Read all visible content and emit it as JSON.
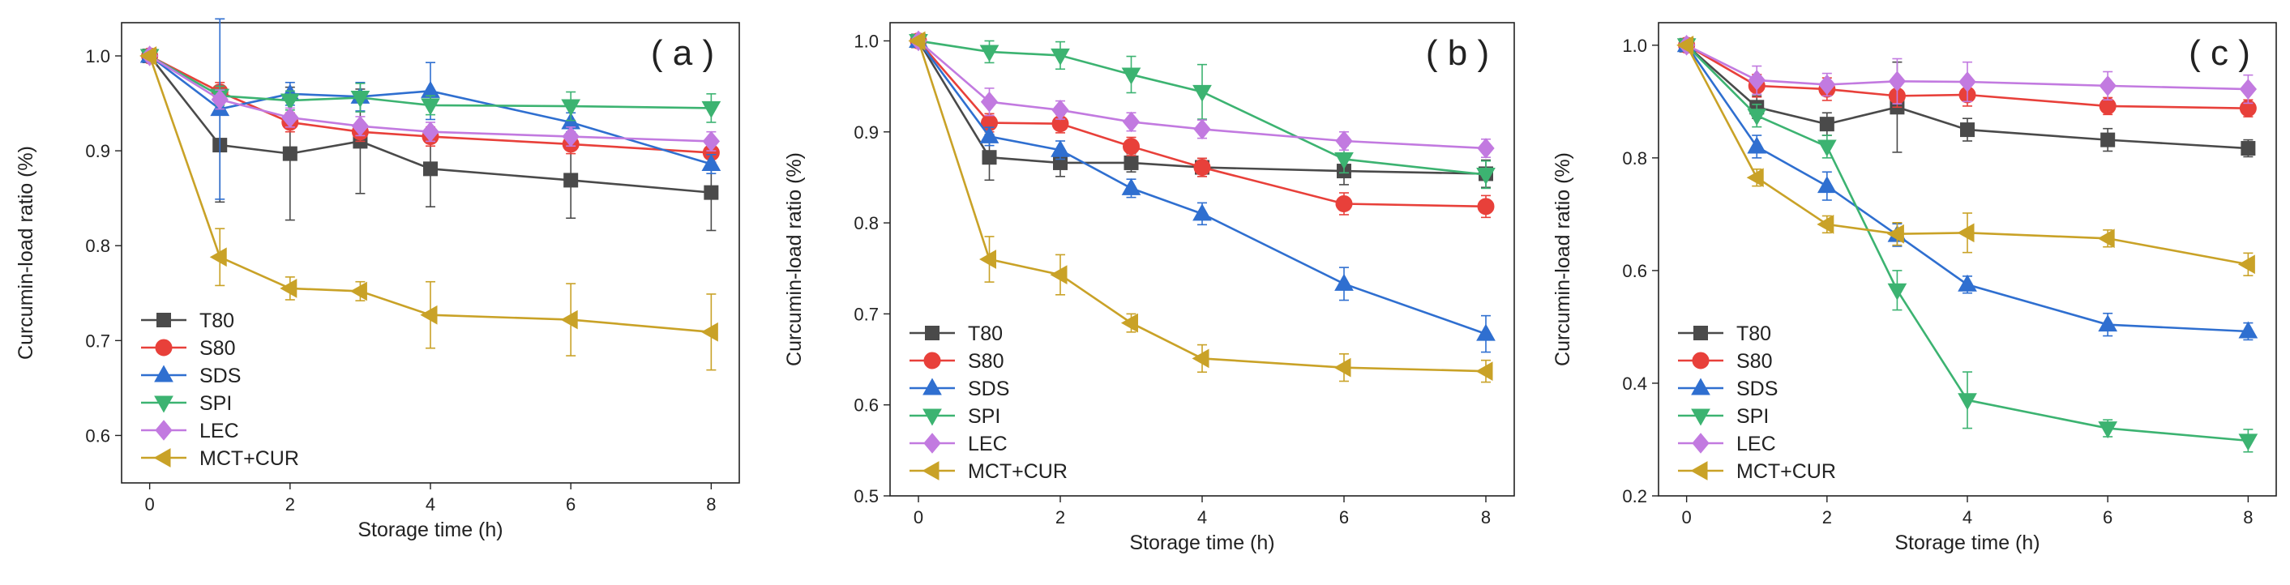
{
  "colors": {
    "T80": "#4a4a4a",
    "S80": "#e8403a",
    "SDS": "#2f6fd0",
    "SPI": "#3cb371",
    "LEC": "#c27ae0",
    "MCT+CUR": "#c9a227"
  },
  "chart_data": [
    {
      "type": "line",
      "panel_label": "( a )",
      "xlabel": "Storage time (h)",
      "ylabel": "Curcumin-load ratio (%)",
      "xlim": [
        -0.4,
        8.4
      ],
      "ylim": [
        0.55,
        1.035
      ],
      "xticks": [
        0,
        2,
        4,
        6,
        8
      ],
      "yticks": [
        0.6,
        0.7,
        0.8,
        0.9,
        1.0
      ],
      "x": [
        0,
        1,
        2,
        3,
        4,
        6,
        8
      ],
      "legend_position": "bottom-left",
      "series": [
        {
          "name": "T80",
          "marker": "square",
          "values": [
            1.0,
            0.906,
            0.897,
            0.91,
            0.881,
            0.869,
            0.856
          ],
          "errors": [
            0,
            0.06,
            0.07,
            0.055,
            0.04,
            0.04,
            0.04
          ]
        },
        {
          "name": "S80",
          "marker": "circle",
          "values": [
            1.0,
            0.962,
            0.93,
            0.92,
            0.915,
            0.907,
            0.898
          ],
          "errors": [
            0,
            0.01,
            0.01,
            0.01,
            0.01,
            0.01,
            0.01
          ]
        },
        {
          "name": "SDS",
          "marker": "triangle-up",
          "values": [
            1.0,
            0.944,
            0.96,
            0.957,
            0.963,
            0.93,
            0.886
          ],
          "errors": [
            0,
            0.095,
            0.012,
            0.015,
            0.03,
            0.01,
            0.01
          ]
        },
        {
          "name": "SPI",
          "marker": "triangle-down",
          "values": [
            1.0,
            0.958,
            0.953,
            0.956,
            0.948,
            0.947,
            0.945
          ],
          "errors": [
            0,
            0.01,
            0.01,
            0.015,
            0.01,
            0.015,
            0.015
          ]
        },
        {
          "name": "LEC",
          "marker": "diamond",
          "values": [
            1.0,
            0.954,
            0.935,
            0.926,
            0.92,
            0.915,
            0.91
          ],
          "errors": [
            0,
            0.01,
            0.01,
            0.01,
            0.01,
            0.01,
            0.01
          ]
        },
        {
          "name": "MCT+CUR",
          "marker": "triangle-left",
          "values": [
            1.0,
            0.788,
            0.755,
            0.752,
            0.727,
            0.722,
            0.709
          ],
          "errors": [
            0,
            0.03,
            0.012,
            0.01,
            0.035,
            0.038,
            0.04
          ]
        }
      ]
    },
    {
      "type": "line",
      "panel_label": "( b )",
      "xlabel": "Storage time (h)",
      "ylabel": "Curcumin-load ratio (%)",
      "xlim": [
        -0.4,
        8.4
      ],
      "ylim": [
        0.5,
        1.02
      ],
      "xticks": [
        0,
        2,
        4,
        6,
        8
      ],
      "yticks": [
        0.5,
        0.6,
        0.7,
        0.8,
        0.9,
        1.0
      ],
      "x": [
        0,
        1,
        2,
        3,
        4,
        6,
        8
      ],
      "legend_position": "bottom-left",
      "series": [
        {
          "name": "T80",
          "marker": "square",
          "values": [
            1.0,
            0.872,
            0.866,
            0.866,
            0.861,
            0.857,
            0.854
          ],
          "errors": [
            0,
            0.025,
            0.015,
            0.01,
            0.01,
            0.015,
            0.015
          ]
        },
        {
          "name": "S80",
          "marker": "circle",
          "values": [
            1.0,
            0.91,
            0.909,
            0.884,
            0.861,
            0.821,
            0.818
          ],
          "errors": [
            0,
            0.01,
            0.01,
            0.01,
            0.01,
            0.012,
            0.012
          ]
        },
        {
          "name": "SDS",
          "marker": "triangle-up",
          "values": [
            1.0,
            0.895,
            0.88,
            0.838,
            0.81,
            0.733,
            0.678
          ],
          "errors": [
            0,
            0.01,
            0.01,
            0.01,
            0.012,
            0.018,
            0.02
          ]
        },
        {
          "name": "SPI",
          "marker": "triangle-down",
          "values": [
            1.0,
            0.988,
            0.984,
            0.963,
            0.944,
            0.87,
            0.853
          ],
          "errors": [
            0,
            0.012,
            0.015,
            0.02,
            0.03,
            0.015,
            0.015
          ]
        },
        {
          "name": "LEC",
          "marker": "diamond",
          "values": [
            1.0,
            0.933,
            0.924,
            0.911,
            0.903,
            0.89,
            0.882
          ],
          "errors": [
            0,
            0.015,
            0.01,
            0.01,
            0.01,
            0.01,
            0.01
          ]
        },
        {
          "name": "MCT+CUR",
          "marker": "triangle-left",
          "values": [
            1.0,
            0.76,
            0.743,
            0.69,
            0.651,
            0.641,
            0.637
          ],
          "errors": [
            0,
            0.025,
            0.022,
            0.01,
            0.015,
            0.015,
            0.012
          ]
        }
      ]
    },
    {
      "type": "line",
      "panel_label": "( c )",
      "xlabel": "Storage time (h)",
      "ylabel": "Curcumin-load ratio (%)",
      "xlim": [
        -0.4,
        8.4
      ],
      "ylim": [
        0.2,
        1.04
      ],
      "xticks": [
        0,
        2,
        4,
        6,
        8
      ],
      "yticks": [
        0.2,
        0.4,
        0.6,
        0.8,
        1.0
      ],
      "x": [
        0,
        1,
        2,
        3,
        4,
        6,
        8
      ],
      "legend_position": "bottom-left",
      "series": [
        {
          "name": "T80",
          "marker": "square",
          "values": [
            1.0,
            0.89,
            0.86,
            0.89,
            0.85,
            0.832,
            0.817
          ],
          "errors": [
            0,
            0.02,
            0.02,
            0.08,
            0.02,
            0.02,
            0.015
          ]
        },
        {
          "name": "S80",
          "marker": "circle",
          "values": [
            1.0,
            0.928,
            0.922,
            0.91,
            0.912,
            0.892,
            0.888
          ],
          "errors": [
            0,
            0.02,
            0.02,
            0.02,
            0.02,
            0.015,
            0.015
          ]
        },
        {
          "name": "SDS",
          "marker": "triangle-up",
          "values": [
            1.0,
            0.82,
            0.75,
            0.663,
            0.575,
            0.504,
            0.492
          ],
          "errors": [
            0,
            0.02,
            0.025,
            0.02,
            0.015,
            0.02,
            0.015
          ]
        },
        {
          "name": "SPI",
          "marker": "triangle-down",
          "values": [
            1.0,
            0.875,
            0.82,
            0.565,
            0.37,
            0.32,
            0.298
          ],
          "errors": [
            0,
            0.02,
            0.02,
            0.035,
            0.05,
            0.015,
            0.02
          ]
        },
        {
          "name": "LEC",
          "marker": "diamond",
          "values": [
            1.0,
            0.938,
            0.93,
            0.936,
            0.935,
            0.928,
            0.922
          ],
          "errors": [
            0,
            0.025,
            0.02,
            0.04,
            0.035,
            0.025,
            0.025
          ]
        },
        {
          "name": "MCT+CUR",
          "marker": "triangle-left",
          "values": [
            1.0,
            0.765,
            0.682,
            0.665,
            0.667,
            0.657,
            0.611
          ],
          "errors": [
            0,
            0.015,
            0.015,
            0.02,
            0.035,
            0.015,
            0.02
          ]
        }
      ]
    }
  ]
}
